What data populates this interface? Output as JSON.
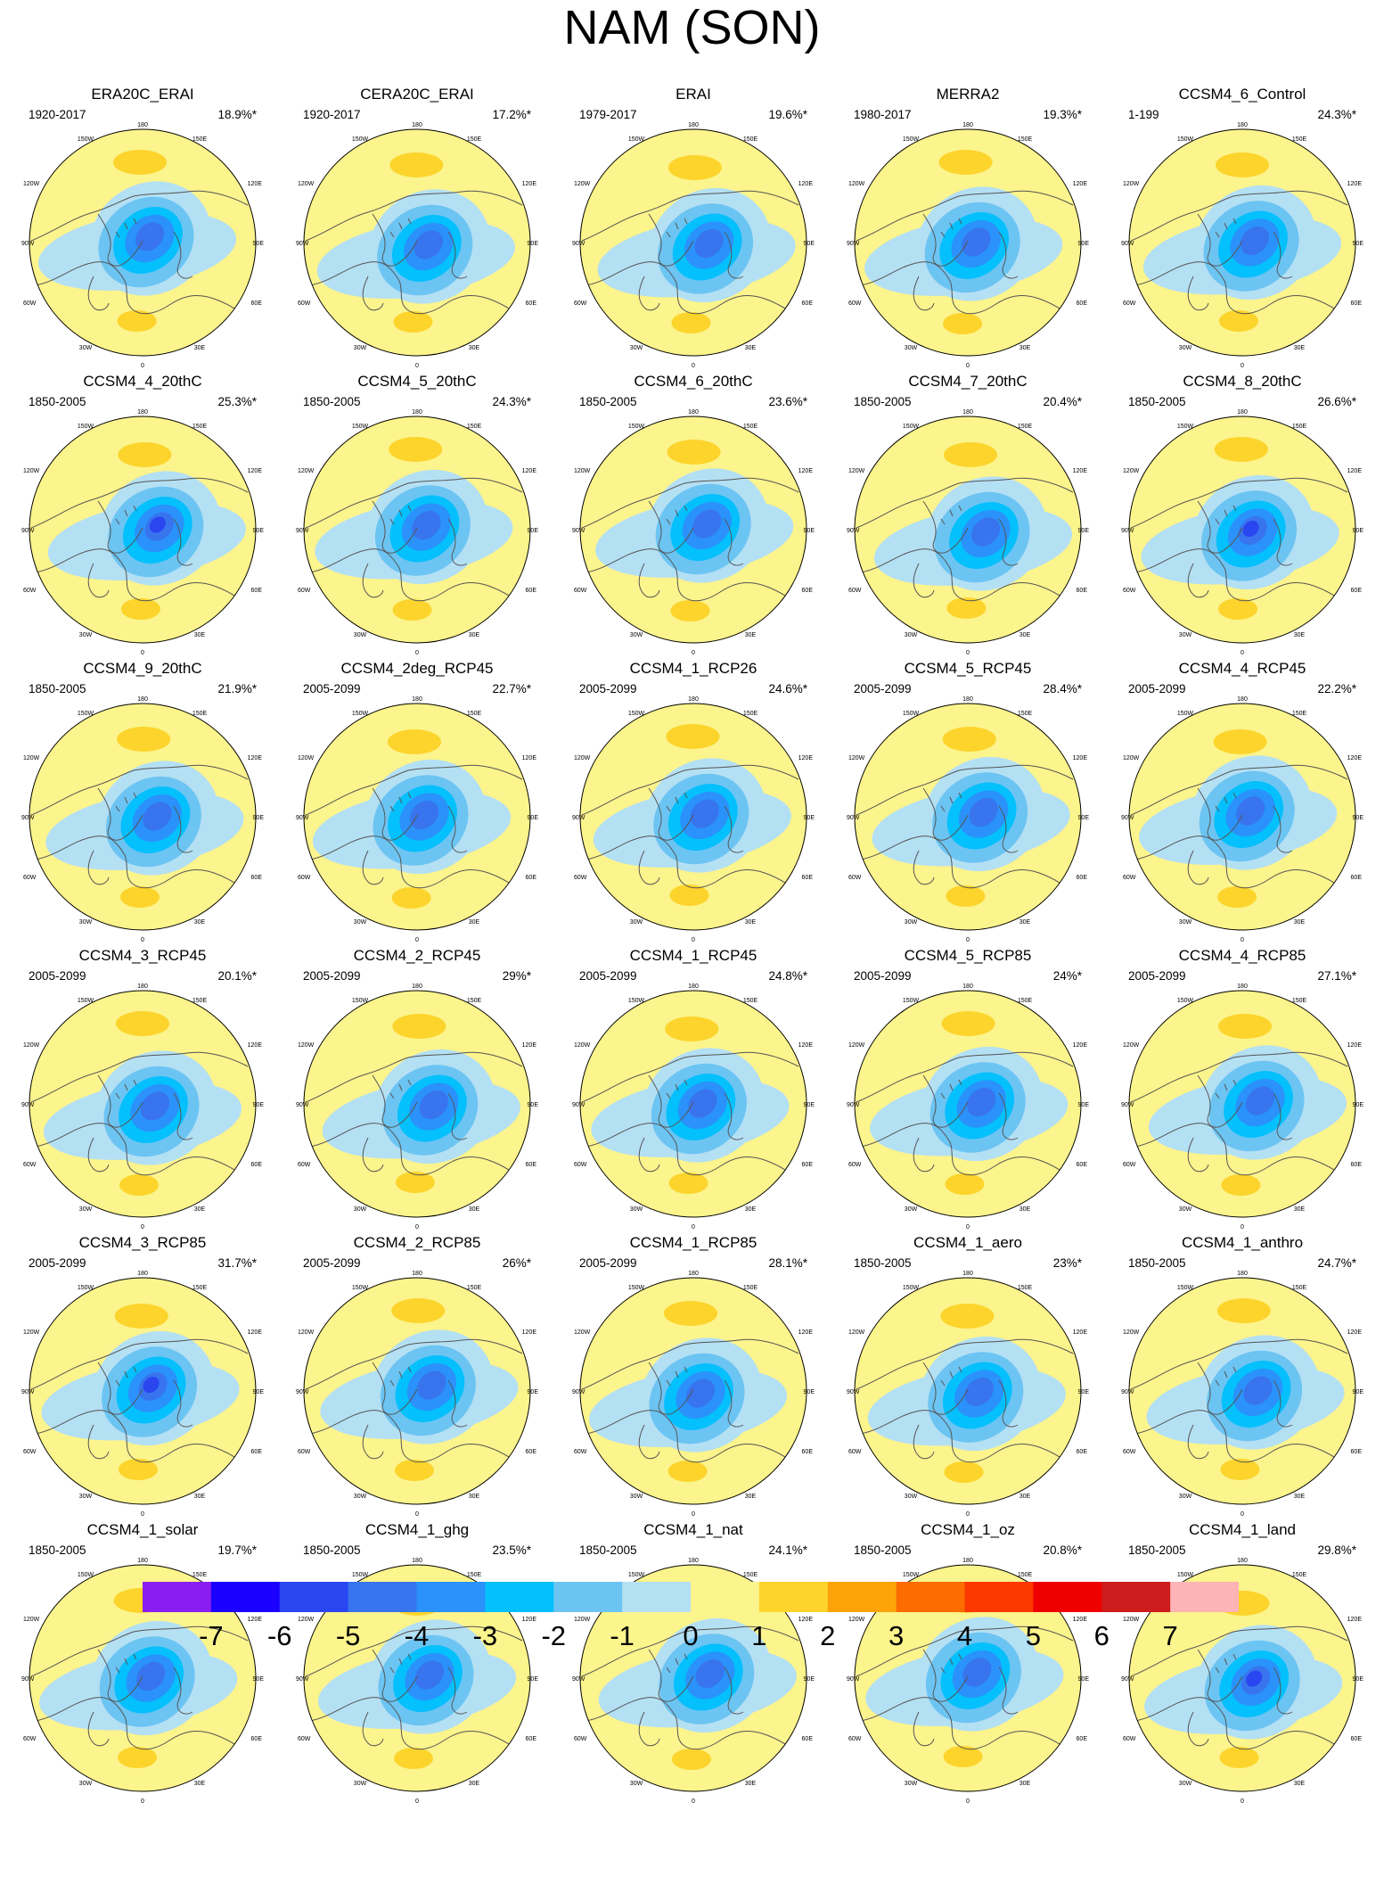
{
  "title": "NAM (SON)",
  "map_graticule_labels": {
    "top": "180",
    "upper_left": "150W",
    "upper_right": "150E",
    "left_high": "120W",
    "right_high": "120E",
    "left_mid": "90W",
    "right_mid": "90E",
    "left_low": "60W",
    "right_low": "60E",
    "lower_left": "30W",
    "lower_right": "30E",
    "bottom": "0"
  },
  "panels": [
    {
      "name": "ERA20C_ERAI",
      "period": "1920-2017",
      "percent": "18.9%*"
    },
    {
      "name": "CERA20C_ERAI",
      "period": "1920-2017",
      "percent": "17.2%*"
    },
    {
      "name": "ERAI",
      "period": "1979-2017",
      "percent": "19.6%*"
    },
    {
      "name": "MERRA2",
      "period": "1980-2017",
      "percent": "19.3%*"
    },
    {
      "name": "CCSM4_6_Control",
      "period": "1-199",
      "percent": "24.3%*"
    },
    {
      "name": "CCSM4_4_20thC",
      "period": "1850-2005",
      "percent": "25.3%*"
    },
    {
      "name": "CCSM4_5_20thC",
      "period": "1850-2005",
      "percent": "24.3%*"
    },
    {
      "name": "CCSM4_6_20thC",
      "period": "1850-2005",
      "percent": "23.6%*"
    },
    {
      "name": "CCSM4_7_20thC",
      "period": "1850-2005",
      "percent": "20.4%*"
    },
    {
      "name": "CCSM4_8_20thC",
      "period": "1850-2005",
      "percent": "26.6%*"
    },
    {
      "name": "CCSM4_9_20thC",
      "period": "1850-2005",
      "percent": "21.9%*"
    },
    {
      "name": "CCSM4_2deg_RCP45",
      "period": "2005-2099",
      "percent": "22.7%*"
    },
    {
      "name": "CCSM4_1_RCP26",
      "period": "2005-2099",
      "percent": "24.6%*"
    },
    {
      "name": "CCSM4_5_RCP45",
      "period": "2005-2099",
      "percent": "28.4%*"
    },
    {
      "name": "CCSM4_4_RCP45",
      "period": "2005-2099",
      "percent": "22.2%*"
    },
    {
      "name": "CCSM4_3_RCP45",
      "period": "2005-2099",
      "percent": "20.1%*"
    },
    {
      "name": "CCSM4_2_RCP45",
      "period": "2005-2099",
      "percent": "29%*"
    },
    {
      "name": "CCSM4_1_RCP45",
      "period": "2005-2099",
      "percent": "24.8%*"
    },
    {
      "name": "CCSM4_5_RCP85",
      "period": "2005-2099",
      "percent": "24%*"
    },
    {
      "name": "CCSM4_4_RCP85",
      "period": "2005-2099",
      "percent": "27.1%*"
    },
    {
      "name": "CCSM4_3_RCP85",
      "period": "2005-2099",
      "percent": "31.7%*"
    },
    {
      "name": "CCSM4_2_RCP85",
      "period": "2005-2099",
      "percent": "26%*"
    },
    {
      "name": "CCSM4_1_RCP85",
      "period": "2005-2099",
      "percent": "28.1%*"
    },
    {
      "name": "CCSM4_1_aero",
      "period": "1850-2005",
      "percent": "23%*"
    },
    {
      "name": "CCSM4_1_anthro",
      "period": "1850-2005",
      "percent": "24.7%*"
    },
    {
      "name": "CCSM4_1_solar",
      "period": "1850-2005",
      "percent": "19.7%*"
    },
    {
      "name": "CCSM4_1_ghg",
      "period": "1850-2005",
      "percent": "23.5%*"
    },
    {
      "name": "CCSM4_1_nat",
      "period": "1850-2005",
      "percent": "24.1%*"
    },
    {
      "name": "CCSM4_1_oz",
      "period": "1850-2005",
      "percent": "20.8%*"
    },
    {
      "name": "CCSM4_1_land",
      "period": "1850-2005",
      "percent": "29.8%*"
    }
  ],
  "colorbar": {
    "labels": [
      "-7",
      "-6",
      "-5",
      "-4",
      "-3",
      "-2",
      "-1",
      "0",
      "1",
      "2",
      "3",
      "4",
      "5",
      "6",
      "7"
    ],
    "colors": [
      "#8a1ef0",
      "#1a00ff",
      "#2a46f0",
      "#3874ee",
      "#2a92fa",
      "#04c0fc",
      "#6cc4f2",
      "#b4e0f4",
      "#fcf48c",
      "#fcd42c",
      "#fca40a",
      "#fc6c00",
      "#fc3800",
      "#ee0000",
      "#cc1c1c",
      "#fcb4b4"
    ]
  },
  "palette": {
    "neg_strong": "#2a46f0",
    "neg4": "#3874ee",
    "neg3": "#2a92fa",
    "neg2": "#04c0fc",
    "neg1": "#6cc4f2",
    "neg0": "#b4e0f4",
    "pos0": "#fcf48c",
    "pos1": "#fcd42c",
    "pos2": "#fca40a"
  }
}
